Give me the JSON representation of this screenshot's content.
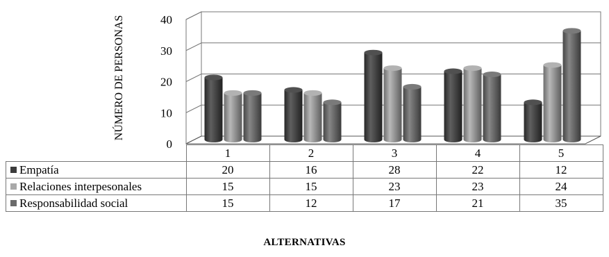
{
  "chart_data": {
    "type": "bar",
    "categories": [
      "1",
      "2",
      "3",
      "4",
      "5"
    ],
    "series": [
      {
        "name": "Empatía",
        "values": [
          20,
          16,
          28,
          22,
          12
        ],
        "color": "#3c3c3c"
      },
      {
        "name": "Relaciones interpesonales",
        "values": [
          15,
          15,
          23,
          23,
          24
        ],
        "color": "#a9a9a9"
      },
      {
        "name": "Responsabilidad social",
        "values": [
          15,
          12,
          17,
          21,
          35
        ],
        "color": "#6b6b6b"
      }
    ],
    "yticks": [
      "0",
      "10",
      "20",
      "30",
      "40"
    ],
    "ylim": [
      0,
      40
    ],
    "ylabel": "NÚMERO DE PERSONAS",
    "xlabel": "ALTERNATIVAS",
    "style": "3d-clustered-column",
    "data_table": true,
    "grid": true
  }
}
